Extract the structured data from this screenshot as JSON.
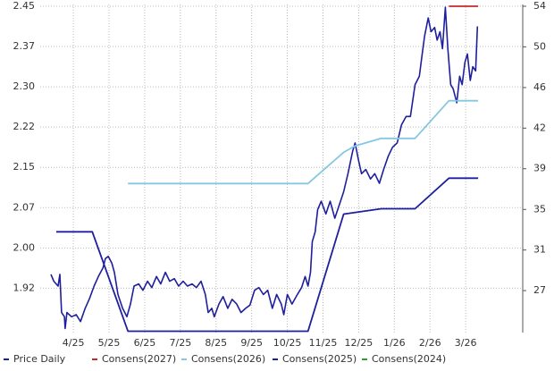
{
  "chart_data": {
    "type": "line",
    "xlim": [
      -0.93,
      12.6
    ],
    "xticks": [
      {
        "value": 0,
        "label": "4/25"
      },
      {
        "value": 1,
        "label": "5/25"
      },
      {
        "value": 2,
        "label": "6/25"
      },
      {
        "value": 3,
        "label": "7/25"
      },
      {
        "value": 4,
        "label": "8/25"
      },
      {
        "value": 5,
        "label": "9/25"
      },
      {
        "value": 6,
        "label": "10/25"
      },
      {
        "value": 7,
        "label": "11/25"
      },
      {
        "value": 8,
        "label": "12/25"
      },
      {
        "value": 9,
        "label": "1/26"
      },
      {
        "value": 10,
        "label": "2/26"
      },
      {
        "value": 11,
        "label": "3/26"
      }
    ],
    "ylim": [
      1.8425,
      2.4533
    ],
    "yticks": [
      {
        "value": 1.925,
        "label": "1.92"
      },
      {
        "value": 2.0,
        "label": "2.00"
      },
      {
        "value": 2.075,
        "label": "2.07"
      },
      {
        "value": 2.15,
        "label": "2.15"
      },
      {
        "value": 2.225,
        "label": "2.22"
      },
      {
        "value": 2.3,
        "label": "2.30"
      },
      {
        "value": 2.375,
        "label": "2.37"
      },
      {
        "value": 2.45,
        "label": "2.45"
      }
    ],
    "y2lim": [
      23.21,
      54.17
    ],
    "y2ticks": [
      {
        "value": 27.17,
        "label": "27"
      },
      {
        "value": 31,
        "label": "31"
      },
      {
        "value": 34.83,
        "label": "35"
      },
      {
        "value": 38.67,
        "label": "39"
      },
      {
        "value": 42.5,
        "label": "42"
      },
      {
        "value": 46.33,
        "label": "46"
      },
      {
        "value": 50.17,
        "label": "50"
      },
      {
        "value": 54,
        "label": "54"
      }
    ],
    "grid": true,
    "legend": "bottom",
    "series": [
      {
        "name": "Price Daily",
        "color": "#1f1f9e",
        "axis": "y2",
        "x": [
          -0.63,
          -0.55,
          -0.43,
          -0.38,
          -0.33,
          -0.25,
          -0.23,
          -0.18,
          -0.05,
          0.08,
          0.2,
          0.33,
          0.45,
          0.58,
          0.7,
          0.83,
          0.9,
          0.98,
          1.08,
          1.15,
          1.25,
          1.38,
          1.5,
          1.6,
          1.7,
          1.83,
          1.95,
          2.08,
          2.2,
          2.33,
          2.45,
          2.58,
          2.7,
          2.83,
          2.95,
          3.08,
          3.2,
          3.33,
          3.45,
          3.58,
          3.7,
          3.78,
          3.88,
          3.95,
          4.08,
          4.2,
          4.33,
          4.45,
          4.58,
          4.7,
          4.83,
          4.95,
          5.08,
          5.2,
          5.33,
          5.45,
          5.58,
          5.7,
          5.83,
          5.9,
          6.0,
          6.13,
          6.28,
          6.4,
          6.5,
          6.58,
          6.65,
          6.7,
          6.78,
          6.85,
          6.95,
          7.08,
          7.2,
          7.33,
          7.45,
          7.58,
          7.7,
          7.83,
          7.9,
          8.0,
          8.08,
          8.2,
          8.33,
          8.45,
          8.58,
          8.7,
          8.83,
          8.95,
          9.08,
          9.2,
          9.33,
          9.45,
          9.58,
          9.7,
          9.78,
          9.85,
          9.95,
          10.03,
          10.13,
          10.2,
          10.28,
          10.35,
          10.43,
          10.5,
          10.58,
          10.65,
          10.75,
          10.83,
          10.9,
          10.98,
          11.05,
          11.13,
          11.2,
          11.28,
          11.33
        ],
        "values": [
          28.7,
          28.05,
          27.6,
          28.7,
          25.1,
          24.7,
          23.6,
          25.1,
          24.7,
          24.9,
          24.25,
          25.5,
          26.4,
          27.6,
          28.5,
          29.3,
          30.2,
          30.4,
          29.75,
          28.9,
          26.8,
          25.5,
          24.7,
          25.9,
          27.6,
          27.8,
          27.2,
          28.05,
          27.45,
          28.5,
          27.8,
          28.9,
          28.05,
          28.3,
          27.6,
          28.05,
          27.6,
          27.8,
          27.45,
          28.05,
          26.8,
          25.1,
          25.5,
          24.7,
          25.9,
          26.6,
          25.5,
          26.35,
          25.9,
          25.1,
          25.5,
          25.8,
          27.2,
          27.45,
          26.8,
          27.2,
          25.5,
          26.8,
          25.9,
          24.9,
          26.8,
          25.9,
          26.8,
          27.45,
          28.5,
          27.6,
          28.9,
          31.8,
          32.7,
          34.8,
          35.6,
          34.4,
          35.6,
          34.0,
          35.2,
          36.5,
          38.2,
          40.3,
          41.1,
          39.4,
          38.2,
          38.6,
          37.7,
          38.2,
          37.3,
          38.6,
          39.85,
          40.7,
          41.1,
          42.8,
          43.6,
          43.6,
          46.6,
          47.4,
          49.5,
          51.2,
          52.9,
          51.6,
          52.0,
          50.8,
          51.6,
          50.0,
          53.9,
          50.0,
          46.6,
          46.2,
          44.9,
          47.4,
          46.6,
          48.7,
          49.5,
          47.0,
          48.3,
          47.9,
          52.1
        ]
      },
      {
        "name": "Consens(2027)",
        "color": "#c8282d",
        "x": [
          10.53,
          11.35
        ],
        "values": [
          2.45,
          2.45
        ]
      },
      {
        "name": "Consens(2026)",
        "color": "#86c8e2",
        "x": [
          1.53,
          6.58,
          7.58,
          7.9,
          8.63,
          9.58,
          10.53,
          11.35
        ],
        "values": [
          2.12,
          2.12,
          2.178,
          2.19,
          2.204,
          2.204,
          2.274,
          2.274
        ]
      },
      {
        "name": "Consens(2025)",
        "color": "#1f1f9e",
        "x": [
          -0.48,
          0.53,
          1.53,
          6.58,
          7.58,
          8.63,
          9.58,
          10.53,
          11.35
        ],
        "values": [
          2.03,
          2.03,
          1.845,
          1.845,
          2.063,
          2.073,
          2.073,
          2.13,
          2.13
        ]
      },
      {
        "name": "Consens(2024)",
        "color": "#2ca02c",
        "x": [],
        "values": []
      }
    ]
  }
}
